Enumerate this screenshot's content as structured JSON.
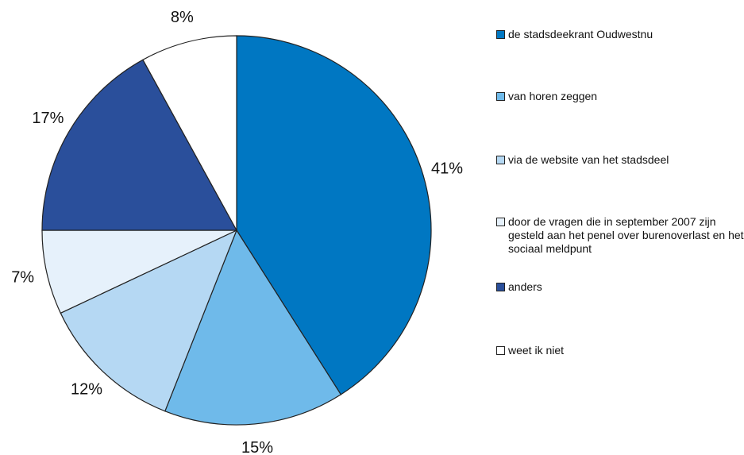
{
  "chart_data": {
    "type": "pie",
    "categories": [
      "de stadsdeekrant Oudwestnu",
      "van horen zeggen",
      "via de website van het stadsdeel",
      "door de vragen die in september 2007 zijn gesteld aan het penel over burenoverlast en het sociaal meldpunt",
      "anders",
      "weet ik niet"
    ],
    "values": [
      41,
      15,
      12,
      7,
      17,
      8
    ],
    "value_labels": [
      "41%",
      "15%",
      "12%",
      "7%",
      "17%",
      "8%"
    ],
    "colors": [
      "#0077c2",
      "#6fbaea",
      "#b5d8f3",
      "#e6f1fb",
      "#2a4f9b",
      "#ffffff"
    ],
    "legend": "right"
  }
}
